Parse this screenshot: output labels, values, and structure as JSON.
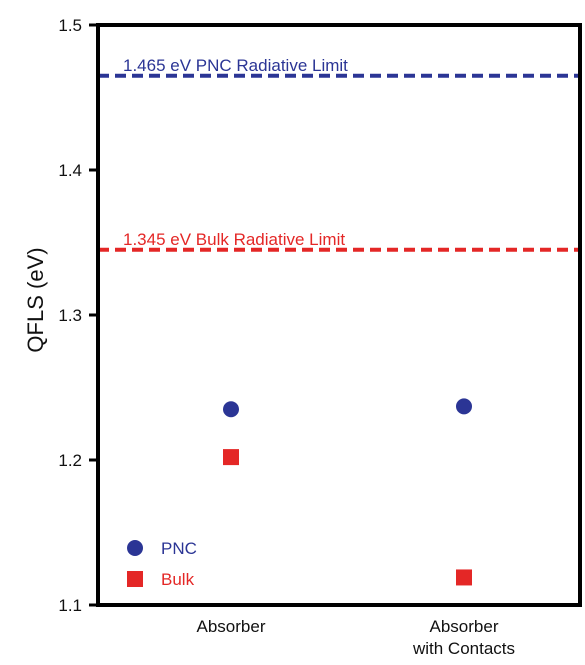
{
  "chart_data": {
    "type": "scatter",
    "title": "",
    "xlabel": "",
    "ylabel": "QFLS (eV)",
    "categories": [
      "Absorber",
      "Absorber with Contacts"
    ],
    "category_lines": [
      [
        "Absorber"
      ],
      [
        "Absorber",
        "with Contacts"
      ]
    ],
    "ylim": [
      1.1,
      1.5
    ],
    "yticks": [
      1.1,
      1.2,
      1.3,
      1.4,
      1.5
    ],
    "ytick_labels": [
      "1.1",
      "1.2",
      "1.3",
      "1.4",
      "1.5"
    ],
    "grid": false,
    "legend_position": "bottom-left",
    "series": [
      {
        "name": "PNC",
        "marker": "circle",
        "color": "#2b3595",
        "values": [
          1.235,
          1.237
        ]
      },
      {
        "name": "Bulk",
        "marker": "square",
        "color": "#e42726",
        "values": [
          1.202,
          1.119
        ]
      }
    ],
    "reference_lines": [
      {
        "label": "1.465 eV PNC Radiative Limit",
        "value": 1.465,
        "color": "#2b3595",
        "style": "dashed"
      },
      {
        "label": "1.345 eV Bulk Radiative Limit",
        "value": 1.345,
        "color": "#e42726",
        "style": "dashed"
      }
    ]
  }
}
